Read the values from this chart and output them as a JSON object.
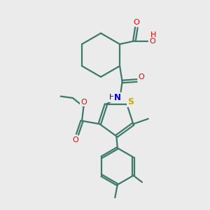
{
  "background_color": "#ebebeb",
  "bond_color": "#3d7a6a",
  "bond_lw": 1.6,
  "atom_colors": {
    "O": "#ee0000",
    "N": "#0000cc",
    "S": "#ccaa00",
    "C": "#3d7a6a"
  },
  "figsize": [
    3.0,
    3.0
  ],
  "dpi": 100,
  "xlim": [
    0,
    10
  ],
  "ylim": [
    0,
    10
  ]
}
